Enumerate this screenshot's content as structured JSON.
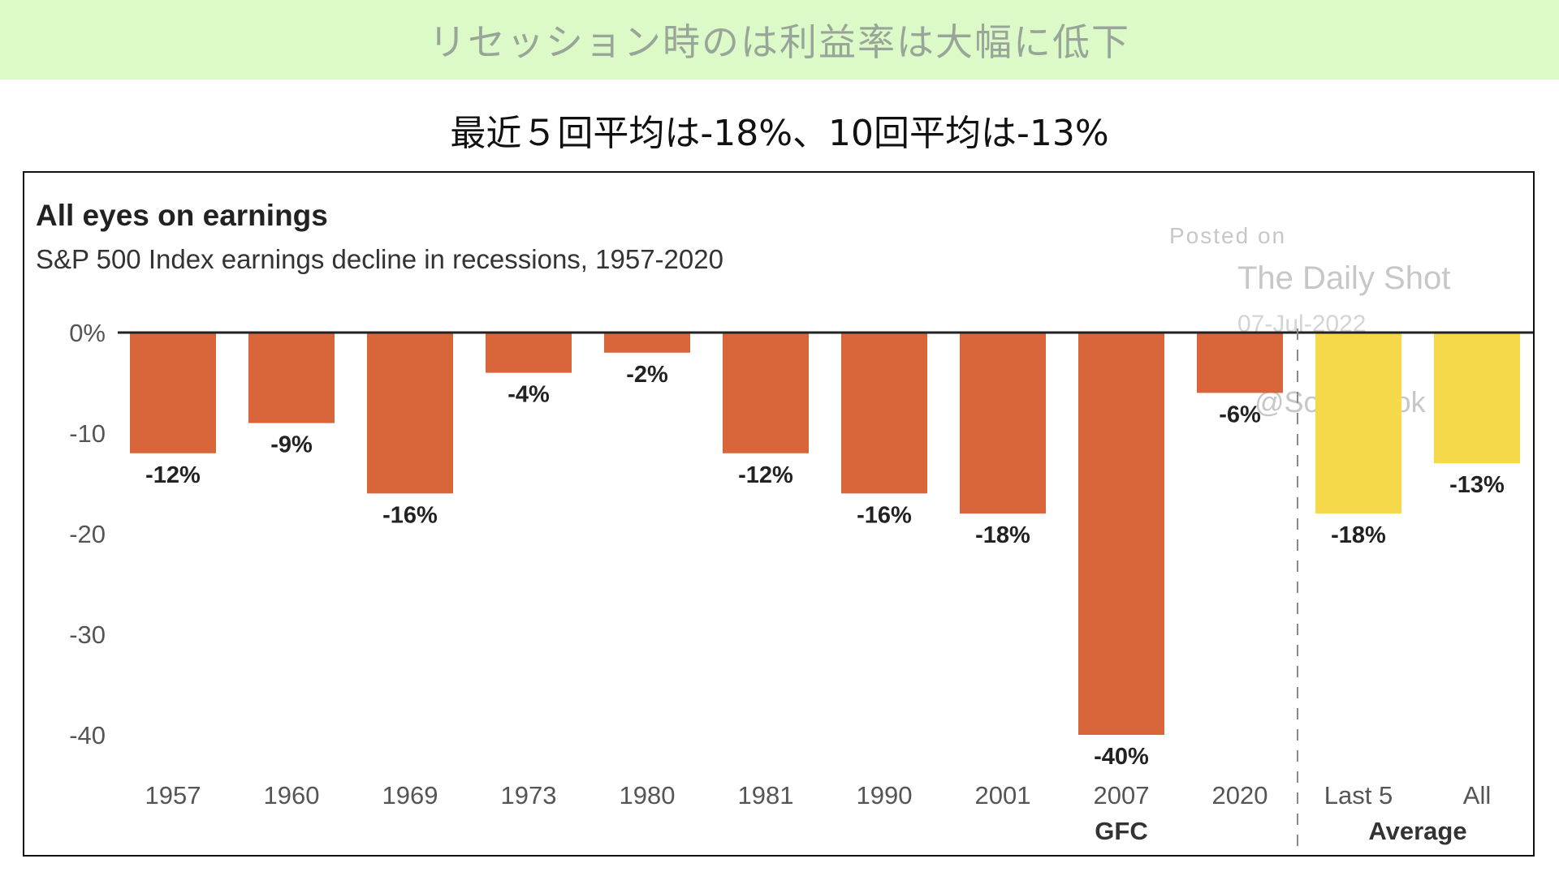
{
  "banner": {
    "text": "リセッション時のは利益率は大幅に低下"
  },
  "subtitle": "最近５回平均は-18%、10回平均は-13%",
  "watermark": {
    "posted": "Posted on",
    "source": "The Daily Shot",
    "date": "07-Jul-2022",
    "handle": "@SoberLook"
  },
  "chart_data": {
    "type": "bar",
    "title": "All eyes on earnings",
    "subtitle": "S&P 500 Index earnings decline in recessions, 1957-2020",
    "xlabel": "",
    "ylabel": "",
    "ylim": [
      -40,
      0
    ],
    "y_ticks": [
      0,
      -10,
      -20,
      -30,
      -40
    ],
    "y_tick_labels": [
      "0%",
      "-10",
      "-20",
      "-30",
      "-40"
    ],
    "grid": false,
    "legend": "none",
    "categories": [
      "1957",
      "1960",
      "1969",
      "1973",
      "1980",
      "1981",
      "1990",
      "2001",
      "2007",
      "2020",
      "Last 5",
      "All"
    ],
    "values": [
      -12,
      -9,
      -16,
      -4,
      -2,
      -12,
      -16,
      -18,
      -40,
      -6,
      -18,
      -13
    ],
    "value_labels": [
      "-12%",
      "-9%",
      "-16%",
      "-4%",
      "-2%",
      "-12%",
      "-16%",
      "-18%",
      "-40%",
      "-6%",
      "-18%",
      "-13%"
    ],
    "sublabels": {
      "2007": "GFC"
    },
    "average_group_label": "Average",
    "colors": {
      "recession": "#d9663a",
      "average": "#f5d94a",
      "axis": "#222222",
      "divider": "#888888"
    }
  }
}
